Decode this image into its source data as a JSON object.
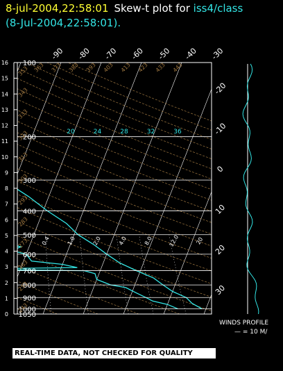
{
  "header": {
    "datetime": "8-jul-2004,22:58:01",
    "title_prefix": "Skew-t plot for ",
    "station": "iss4/class",
    "subtitle": "(8-Jul-2004,22:58:01)."
  },
  "warning": "REAL-TIME DATA, NOT CHECKED FOR QUALITY",
  "winds_profile": {
    "title": "WINDS PROFILE",
    "scale": "— = 10 M/"
  },
  "colors": {
    "background": "#000000",
    "grid": "#ffffff",
    "isobar_label": "#ffffff",
    "km_axis": "#ffffff",
    "isotherm": "#ffffff",
    "dry_adiabat": "#a07840",
    "mixing_ratio": "#ffffff",
    "sounding": "#33e6e6",
    "datetime": "#ffff33",
    "station": "#33e6e6"
  },
  "chart_data": {
    "type": "line",
    "subtype": "skew-t log-p",
    "pressure_range_hpa": [
      1050,
      100
    ],
    "pressure_levels": [
      100,
      200,
      300,
      400,
      500,
      600,
      700,
      800,
      900,
      1000,
      1050
    ],
    "pressure_labels": [
      "100",
      "200",
      "300",
      "400",
      "500",
      "600",
      "700",
      "800",
      "900",
      "1000",
      "1050"
    ],
    "height_km_labels": [
      "0",
      "1",
      "2",
      "3",
      "4",
      "5",
      "6",
      "7",
      "8",
      "9",
      "10",
      "11",
      "12",
      "13",
      "14",
      "15",
      "16"
    ],
    "isotherm_labels_top": [
      "-90",
      "-80",
      "-70",
      "-60",
      "-50",
      "-40",
      "-30"
    ],
    "isotherm_labels_right": [
      "-20",
      "-10",
      "0",
      "10",
      "20",
      "30"
    ],
    "dry_adiabat_labels": [
      "243",
      "253",
      "263",
      "273",
      "283",
      "293",
      "303",
      "313",
      "323",
      "333",
      "343",
      "353",
      "363",
      "373",
      "383",
      "393",
      "403",
      "413",
      "423",
      "433",
      "443"
    ],
    "mixing_ratio_labels": [
      "0.4",
      "1.0",
      "2.0",
      "4.0",
      "8.0",
      "12.0",
      "20"
    ],
    "saturated_adiabat_labels": [
      "20",
      "24",
      "28",
      "32",
      "36"
    ],
    "grid": true,
    "series": [
      {
        "role": "temperature",
        "points": [
          [
            1000,
            29
          ],
          [
            950,
            26
          ],
          [
            900,
            24
          ],
          [
            850,
            20
          ],
          [
            800,
            17
          ],
          [
            750,
            14
          ],
          [
            700,
            9
          ],
          [
            650,
            4
          ],
          [
            600,
            0
          ],
          [
            550,
            -4
          ],
          [
            500,
            -9
          ],
          [
            450,
            -13
          ],
          [
            400,
            -19
          ],
          [
            350,
            -25
          ],
          [
            300,
            -33
          ],
          [
            250,
            -42
          ],
          [
            200,
            -52
          ],
          [
            175,
            -56
          ],
          [
            150,
            -60
          ],
          [
            125,
            -63
          ],
          [
            110,
            -60
          ],
          [
            100,
            -58
          ]
        ]
      },
      {
        "role": "dewpoint",
        "points": [
          [
            1000,
            23
          ],
          [
            960,
            20
          ],
          [
            930,
            16
          ],
          [
            900,
            14
          ],
          [
            860,
            11
          ],
          [
            820,
            8
          ],
          [
            800,
            4
          ],
          [
            760,
            0
          ],
          [
            720,
            -1
          ],
          [
            700,
            -4
          ],
          [
            690,
            -35
          ],
          [
            680,
            -6
          ],
          [
            660,
            -10
          ],
          [
            640,
            -18
          ],
          [
            600,
            -20
          ],
          [
            580,
            -24
          ],
          [
            560,
            -22
          ],
          [
            540,
            -27
          ],
          [
            500,
            -28
          ],
          [
            470,
            -31
          ],
          [
            430,
            -33
          ],
          [
            400,
            -38
          ],
          [
            380,
            -38
          ],
          [
            360,
            -43
          ],
          [
            340,
            -43
          ],
          [
            320,
            -46
          ],
          [
            300,
            -49
          ],
          [
            280,
            -52
          ],
          [
            260,
            -55
          ],
          [
            240,
            -57
          ],
          [
            220,
            -62
          ],
          [
            200,
            -68
          ],
          [
            180,
            -70
          ],
          [
            160,
            -74
          ],
          [
            140,
            -77
          ],
          [
            125,
            -82
          ],
          [
            110,
            -85
          ],
          [
            100,
            -85
          ]
        ]
      }
    ]
  }
}
